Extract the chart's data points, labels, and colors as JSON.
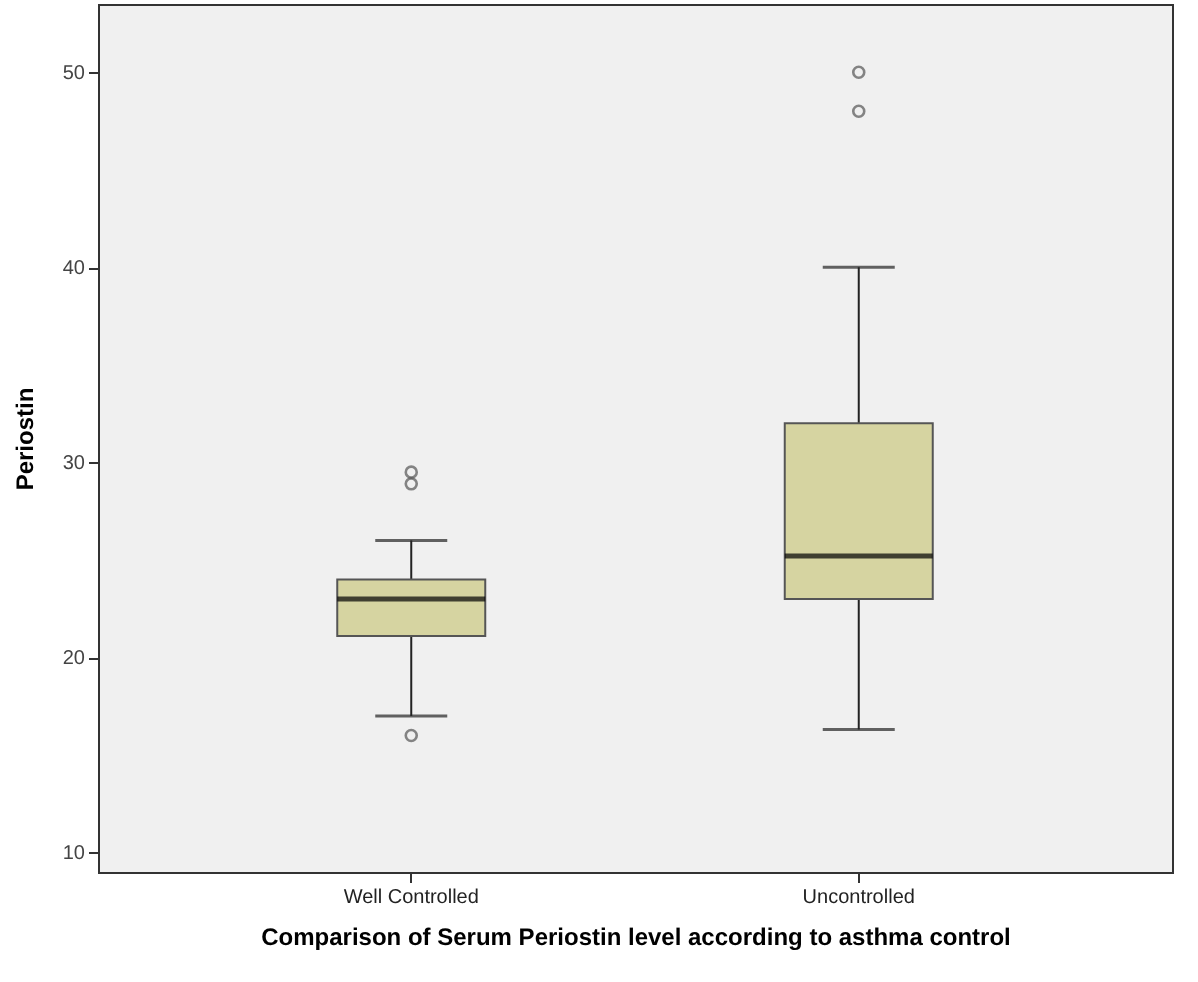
{
  "chart_data": {
    "type": "box",
    "xlabel": "Comparison of Serum Periostin level according to asthma control",
    "ylabel": "Periostin",
    "categories": [
      "Well Controlled",
      "Uncontrolled"
    ],
    "color": "#d6d4a1",
    "boxes": [
      {
        "low": 17,
        "q1": 21.1,
        "median": 23,
        "q3": 24,
        "high": 26,
        "outliers": [
          29.5,
          28.9,
          16
        ]
      },
      {
        "low": 16.3,
        "q1": 23,
        "median": 25.2,
        "q3": 32,
        "high": 40,
        "outliers": [
          50,
          48
        ]
      }
    ],
    "ylim": [
      9,
      53.5
    ],
    "yticks": [
      10,
      20,
      30,
      40,
      50
    ],
    "grid": false
  }
}
